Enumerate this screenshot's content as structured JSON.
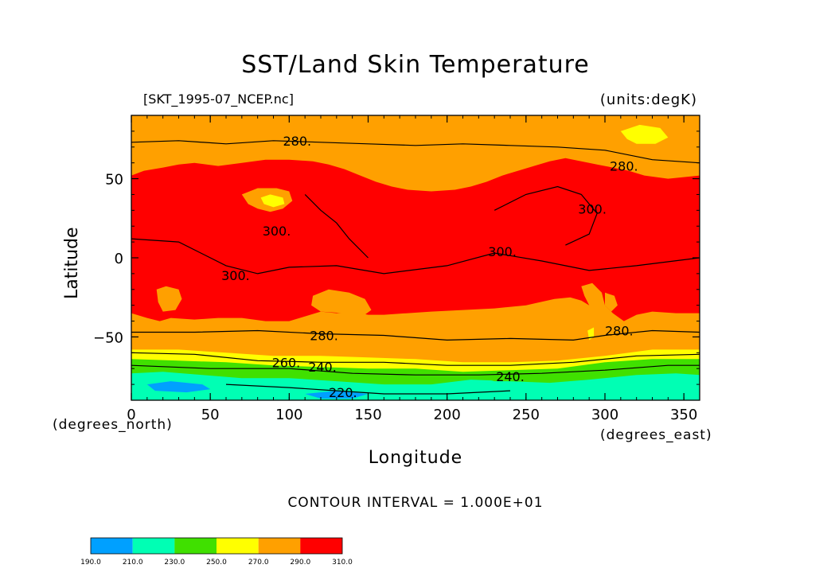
{
  "chart_data": {
    "type": "heatmap",
    "title": "SST/Land Skin Temperature",
    "subtitle_left": "[SKT_1995-07_NCEP.nc]",
    "subtitle_right": "(units:degK)",
    "xlabel": "Longitude",
    "ylabel": "Latitude",
    "x_units": "(degrees_east)",
    "y_units": "(degrees_north)",
    "contour_interval_text": "CONTOUR INTERVAL = 1.000E+01",
    "xlim": [
      0,
      360
    ],
    "ylim": [
      -90,
      90
    ],
    "x_ticks": [
      0,
      50,
      100,
      150,
      200,
      250,
      300,
      350
    ],
    "y_ticks": [
      -50,
      0,
      50
    ],
    "grid": false,
    "legend_placement": "bottom-left",
    "colorbar": {
      "levels": [
        "190.0",
        "210.0",
        "230.0",
        "250.0",
        "270.0",
        "290.0",
        "310.0"
      ],
      "colors": [
        "#00a0ff",
        "#00ffb4",
        "#40e000",
        "#ffff00",
        "#ffa000",
        "#ff0000"
      ]
    },
    "bands": [
      {
        "name": "190-210",
        "color": "#00a0ff"
      },
      {
        "name": "210-230",
        "color": "#00ffb4"
      },
      {
        "name": "230-250",
        "color": "#40e000"
      },
      {
        "name": "250-270",
        "color": "#ffff00"
      },
      {
        "name": "270-290",
        "color": "#ffa000"
      },
      {
        "name": "290-310",
        "color": "#ff0000"
      }
    ],
    "contour_labels": [
      {
        "text": "280.",
        "lon": 105,
        "lat": 74
      },
      {
        "text": "280.",
        "lon": 312,
        "lat": 58
      },
      {
        "text": "300.",
        "lon": 292,
        "lat": 31
      },
      {
        "text": "300.",
        "lon": 235,
        "lat": 4
      },
      {
        "text": "300.",
        "lon": 66,
        "lat": -11
      },
      {
        "text": "300.",
        "lon": 92,
        "lat": 17
      },
      {
        "text": "280.",
        "lon": 122,
        "lat": -49
      },
      {
        "text": "280.",
        "lon": 309,
        "lat": -46
      },
      {
        "text": "260.",
        "lon": 98,
        "lat": -66
      },
      {
        "text": "240.",
        "lon": 121,
        "lat": -69
      },
      {
        "text": "240.",
        "lon": 240,
        "lat": -75
      },
      {
        "text": "220.",
        "lon": 134,
        "lat": -85
      }
    ]
  }
}
